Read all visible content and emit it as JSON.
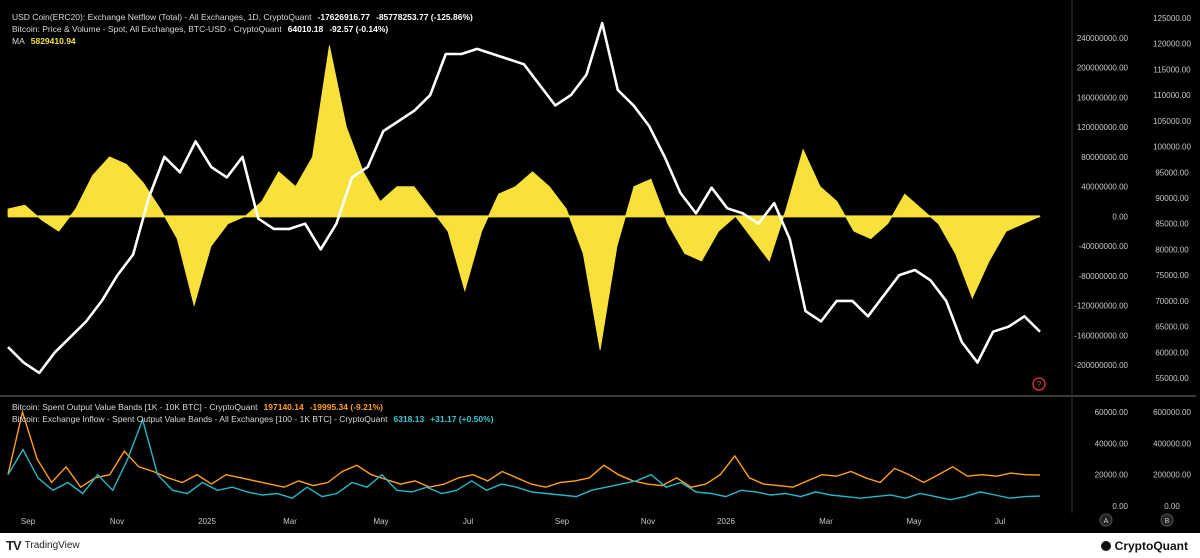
{
  "legend_top": [
    {
      "text": "USD Coin(ERC20): Exchange Netflow (Total) - All Exchanges, 1D, CryptoQuant",
      "values": [
        "-17626916.77",
        "-85778253.77 (-125.86%)"
      ],
      "value_color": "#ffffff"
    },
    {
      "text": "Bitcoin: Price & Volume - Spot, All Exchanges, BTC-USD - CryptoQuant",
      "values": [
        "64010.18",
        "-92.57 (-0.14%)"
      ],
      "value_color": "#ffffff"
    },
    {
      "text": "MA",
      "values": [
        "5829410.94"
      ],
      "value_color": "#f7e13a"
    }
  ],
  "legend_bottom": [
    {
      "text": "Bitcoin: Spent Output Value Bands [1K - 10K BTC] - CryptoQuant",
      "values": [
        "197140.14",
        "-19995.34 (-9.21%)"
      ],
      "value_color": "#ff9f1c"
    },
    {
      "text": "Bitcoin: Exchange Inflow - Spent Output Value Bands - All Exchanges [100 - 1K BTC] - CryptoQuant",
      "values": [
        "6318.13",
        "+31.17 (+0.50%)"
      ],
      "value_color": "#3fc6d4"
    }
  ],
  "colors": {
    "background": "#000000",
    "netflow_ma": "#f7e13a",
    "btc_price": "#ffffff",
    "band_1k_10k": "#ff9f1c",
    "inflow_100_1k": "#26b7c9",
    "axis_text": "#c8c8c8",
    "help_icon": "#e23b3b"
  },
  "branding": {
    "tradingview": "TradingView",
    "cryptoquant": "CryptoQuant"
  },
  "chart_data": [
    {
      "type": "area",
      "name_hint": "upper panel",
      "x_ticks": [
        "Sep",
        "Nov",
        "2025",
        "Mar",
        "May",
        "Jul",
        "Sep",
        "Nov",
        "2026",
        "Mar",
        "May",
        "Jul"
      ],
      "series": [
        {
          "name": "MA",
          "type": "area",
          "axis": "left",
          "color": "#f7e13a",
          "values": [
            10000000,
            15000000,
            -5000000,
            -20000000,
            10000000,
            55000000,
            80000000,
            70000000,
            45000000,
            10000000,
            -30000000,
            -120000000,
            -40000000,
            -10000000,
            0,
            20000000,
            60000000,
            40000000,
            80000000,
            230000000,
            120000000,
            60000000,
            20000000,
            40000000,
            40000000,
            10000000,
            -20000000,
            -100000000,
            -20000000,
            30000000,
            40000000,
            60000000,
            40000000,
            10000000,
            -50000000,
            -180000000,
            -40000000,
            40000000,
            50000000,
            -10000000,
            -50000000,
            -60000000,
            -20000000,
            0,
            -30000000,
            -60000000,
            10000000,
            90000000,
            40000000,
            20000000,
            -20000000,
            -30000000,
            -10000000,
            30000000,
            10000000,
            -10000000,
            -50000000,
            -110000000,
            -60000000,
            -20000000,
            -10000000,
            0
          ]
        },
        {
          "name": "Bitcoin: Price & Volume",
          "type": "line",
          "axis": "right",
          "color": "#ffffff",
          "values": [
            61000,
            58000,
            56000,
            60000,
            63000,
            66000,
            70000,
            75000,
            79000,
            90000,
            98000,
            95000,
            101000,
            96000,
            94000,
            98000,
            86000,
            84000,
            84000,
            85000,
            80000,
            85000,
            94000,
            96000,
            103000,
            105000,
            107000,
            110000,
            118000,
            118000,
            119000,
            118000,
            117000,
            116000,
            112000,
            108000,
            110000,
            114000,
            124000,
            111000,
            108000,
            104000,
            98000,
            91000,
            87000,
            92000,
            88000,
            87000,
            85000,
            89000,
            82000,
            68000,
            66000,
            70000,
            70000,
            67000,
            71000,
            75000,
            76000,
            74000,
            70000,
            62000,
            58000,
            64000,
            65000,
            67000,
            64000
          ]
        }
      ],
      "left_axis_ticks": [
        "240000000.00",
        "200000000.00",
        "160000000.00",
        "120000000.00",
        "80000000.00",
        "40000000.00",
        "0.00",
        "-40000000.00",
        "-80000000.00",
        "-120000000.00",
        "-160000000.00",
        "-200000000.00"
      ],
      "right_axis_ticks": [
        "125000.00",
        "120000.00",
        "115000.00",
        "110000.00",
        "105000.00",
        "100000.00",
        "95000.00",
        "90000.00",
        "85000.00",
        "80000.00",
        "75000.00",
        "70000.00",
        "65000.00",
        "60000.00",
        "55000.00"
      ]
    },
    {
      "type": "line",
      "name_hint": "lower panel",
      "series": [
        {
          "name": "Spent Output Value Bands [1K - 10K BTC]",
          "axis": "right",
          "color": "#ff9f1c",
          "values": [
            200000,
            600000,
            300000,
            150000,
            250000,
            120000,
            180000,
            200000,
            350000,
            250000,
            220000,
            180000,
            150000,
            200000,
            140000,
            200000,
            180000,
            160000,
            140000,
            120000,
            160000,
            130000,
            150000,
            220000,
            260000,
            200000,
            170000,
            140000,
            160000,
            120000,
            140000,
            180000,
            200000,
            160000,
            220000,
            180000,
            140000,
            120000,
            150000,
            160000,
            180000,
            260000,
            200000,
            160000,
            140000,
            130000,
            180000,
            120000,
            140000,
            200000,
            320000,
            180000,
            140000,
            130000,
            120000,
            160000,
            200000,
            190000,
            220000,
            180000,
            150000,
            240000,
            200000,
            150000,
            200000,
            250000,
            190000,
            200000,
            190000,
            210000,
            200000,
            197140
          ]
        },
        {
          "name": "Exchange Inflow - Spent Output Value Bands [100 - 1K BTC]",
          "axis": "left",
          "color": "#26b7c9",
          "values": [
            20000,
            36000,
            18000,
            10000,
            15000,
            8000,
            20000,
            10000,
            30000,
            55000,
            20000,
            10000,
            8000,
            15000,
            10000,
            12000,
            9000,
            7000,
            8000,
            5000,
            12000,
            6000,
            8000,
            15000,
            12000,
            20000,
            10000,
            9000,
            12000,
            8000,
            10000,
            16000,
            10000,
            14000,
            12000,
            9000,
            8000,
            7000,
            6000,
            10000,
            12000,
            14000,
            16000,
            20000,
            12000,
            15000,
            9000,
            8000,
            6000,
            10000,
            9000,
            7000,
            8000,
            6000,
            9000,
            7000,
            6000,
            5000,
            6000,
            7000,
            5000,
            8000,
            6000,
            4000,
            6000,
            9000,
            7000,
            5000,
            6000,
            6318
          ]
        }
      ],
      "left_axis_ticks": [
        "60000.00",
        "40000.00",
        "20000.00",
        "0.00"
      ],
      "right_axis_ticks": [
        "600000.00",
        "400000.00",
        "200000.00",
        "0.00"
      ]
    }
  ]
}
